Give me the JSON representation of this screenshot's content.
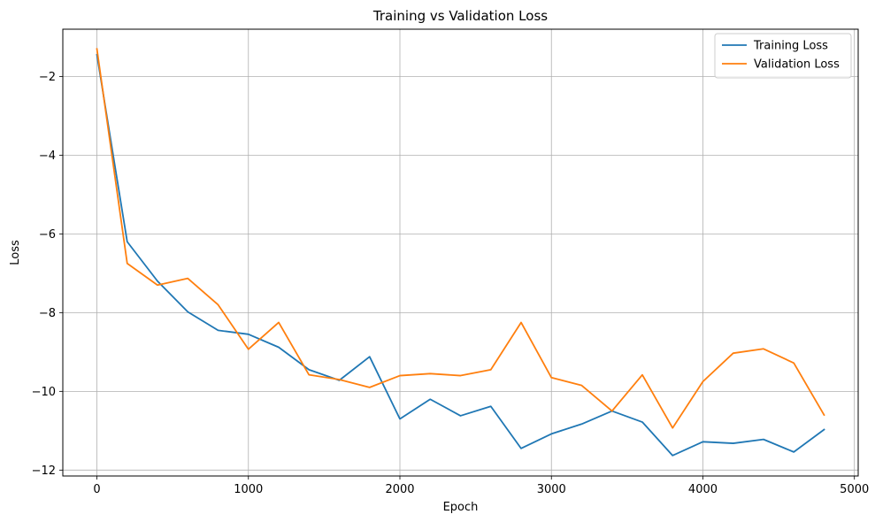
{
  "chart_data": {
    "type": "line",
    "title": "Training vs Validation Loss",
    "xlabel": "Epoch",
    "ylabel": "Loss",
    "xlim": [
      -225,
      5025
    ],
    "ylim": [
      -12.15,
      -0.8
    ],
    "xticks": [
      0,
      1000,
      2000,
      3000,
      4000,
      5000
    ],
    "xtick_labels": [
      "0",
      "1000",
      "2000",
      "3000",
      "4000",
      "5000"
    ],
    "yticks": [
      -12,
      -10,
      -8,
      -6,
      -4,
      -2
    ],
    "ytick_labels": [
      "−12",
      "−10",
      "−8",
      "−6",
      "−4",
      "−2"
    ],
    "grid": true,
    "legend_position": "top-right",
    "x": [
      0,
      200,
      400,
      600,
      800,
      1000,
      1200,
      1400,
      1600,
      1800,
      2000,
      2200,
      2400,
      2600,
      2800,
      3000,
      3200,
      3400,
      3600,
      3800,
      4000,
      4200,
      4400,
      4600,
      4800
    ],
    "series": [
      {
        "name": "Training Loss",
        "color": "#1f77b4",
        "values": [
          -1.45,
          -6.2,
          -7.2,
          -7.98,
          -8.45,
          -8.55,
          -8.88,
          -9.45,
          -9.72,
          -9.12,
          -10.7,
          -10.2,
          -10.62,
          -10.38,
          -11.45,
          -11.08,
          -10.83,
          -10.5,
          -10.78,
          -11.63,
          -11.28,
          -11.32,
          -11.22,
          -11.54,
          -10.97
        ]
      },
      {
        "name": "Validation Loss",
        "color": "#ff7f0e",
        "values": [
          -1.3,
          -6.75,
          -7.3,
          -7.13,
          -7.8,
          -8.93,
          -8.25,
          -9.58,
          -9.7,
          -9.9,
          -9.6,
          -9.55,
          -9.6,
          -9.45,
          -8.25,
          -9.65,
          -9.85,
          -10.5,
          -9.58,
          -10.93,
          -9.75,
          -9.03,
          -8.92,
          -9.28,
          -10.6
        ]
      }
    ]
  }
}
